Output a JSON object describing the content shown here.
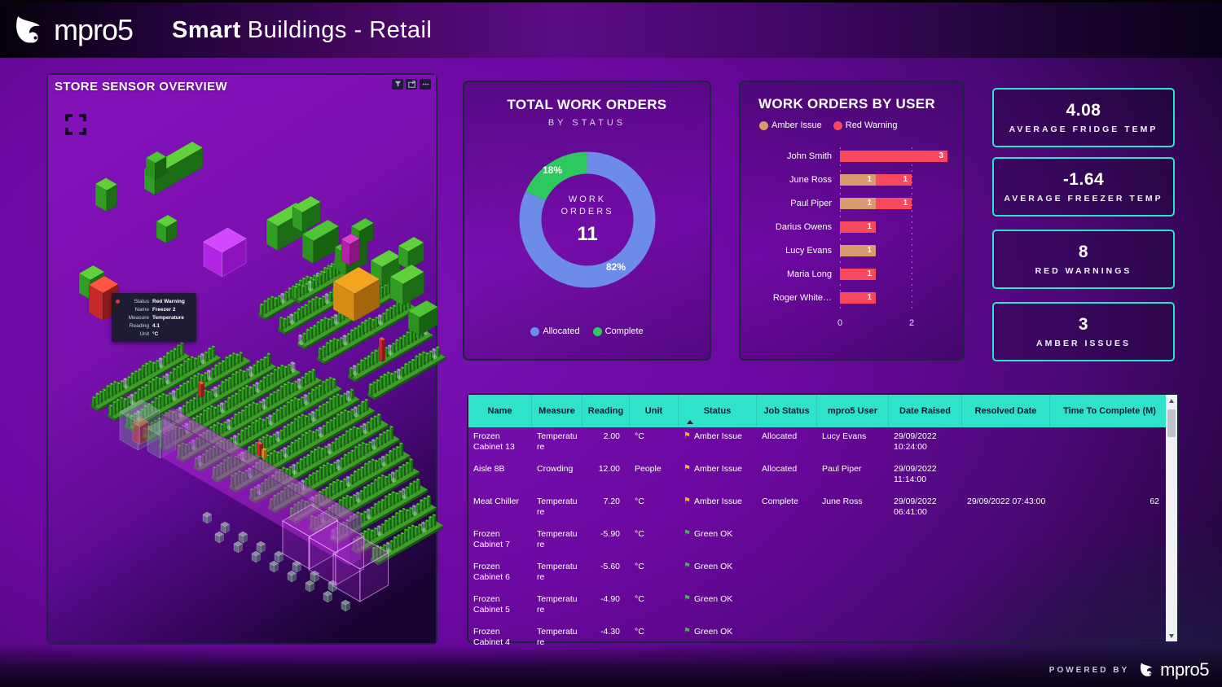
{
  "header": {
    "brand": "mpro5",
    "title_bold": "Smart",
    "title_rest": "Buildings - Retail"
  },
  "store_panel": {
    "title": "STORE SENSOR OVERVIEW",
    "toolbar_icons": [
      "filter-icon",
      "focus-mode-icon",
      "more-options-icon"
    ],
    "tooltip": {
      "rows": [
        {
          "label": "Status",
          "value": "Red Warning"
        },
        {
          "label": "Name",
          "value": "Freezer 2"
        },
        {
          "label": "Measure",
          "value": "Temperature"
        },
        {
          "label": "Reading",
          "value": "4.1"
        },
        {
          "label": "Unit",
          "value": "°C"
        }
      ]
    }
  },
  "chart_data": [
    {
      "type": "pie",
      "title": "TOTAL WORK ORDERS",
      "subtitle": "BY STATUS",
      "labels": [
        "Allocated",
        "Complete"
      ],
      "values": [
        9,
        2
      ],
      "percents": [
        82,
        18
      ],
      "value_labels": [
        "82%",
        "18%"
      ],
      "colors": [
        "#6D8CE8",
        "#2EC95E"
      ],
      "center_label": "WORK ORDERS",
      "center_value": "11",
      "legend_position": "bottom"
    },
    {
      "type": "bar",
      "orientation": "horizontal",
      "stacked": true,
      "title": "WORK ORDERS BY USER",
      "categories": [
        "John Smith",
        "June Ross",
        "Paul Piper",
        "Darius Owens",
        "Lucy Evans",
        "Maria Long",
        "Roger White…"
      ],
      "series": [
        {
          "name": "Amber Issue",
          "color": "#D99A70",
          "values": [
            0,
            1,
            1,
            0,
            1,
            0,
            0
          ]
        },
        {
          "name": "Red Warning",
          "color": "#F7485E",
          "values": [
            3,
            1,
            1,
            1,
            0,
            1,
            1
          ]
        }
      ],
      "x_ticks": [
        "0",
        "2"
      ],
      "xlim": [
        0,
        3.2
      ],
      "grid": "dotted-vertical"
    }
  ],
  "kpis": [
    {
      "value": "4.08",
      "label": "AVERAGE FRIDGE TEMP"
    },
    {
      "value": "-1.64",
      "label": "AVERAGE FREEZER TEMP"
    },
    {
      "value": "8",
      "label": "RED WARNINGS"
    },
    {
      "value": "3",
      "label": "AMBER ISSUES"
    }
  ],
  "table": {
    "columns": [
      "Name",
      "Measure",
      "Reading",
      "Unit",
      "Status",
      "Job Status",
      "mpro5 User",
      "Date Raised",
      "Resolved Date",
      "Time To Complete (M)"
    ],
    "sorted_column": "Status",
    "sort_direction": "ascending",
    "status_flag_glyph": "⚑",
    "rows": [
      {
        "name": "Frozen Cabinet 13",
        "measure": "Temperature",
        "reading": "2.00",
        "unit": "°C",
        "status": "Amber Issue",
        "status_color": "#E8B33C",
        "job_status": "Allocated",
        "user": "Lucy Evans",
        "date_raised": "29/09/2022 10:24:00",
        "resolved_date": "",
        "time_to_complete": ""
      },
      {
        "name": "Aisle 8B",
        "measure": "Crowding",
        "reading": "12.00",
        "unit": "People",
        "status": "Amber Issue",
        "status_color": "#E8B33C",
        "job_status": "Allocated",
        "user": "Paul Piper",
        "date_raised": "29/09/2022 11:14:00",
        "resolved_date": "",
        "time_to_complete": ""
      },
      {
        "name": "Meat Chiller",
        "measure": "Temperature",
        "reading": "7.20",
        "unit": "°C",
        "status": "Amber Issue",
        "status_color": "#E8B33C",
        "job_status": "Complete",
        "user": "June Ross",
        "date_raised": "29/09/2022 06:41:00",
        "resolved_date": "29/09/2022 07:43:00",
        "time_to_complete": "62"
      },
      {
        "name": "Frozen Cabinet 7",
        "measure": "Temperature",
        "reading": "-5.90",
        "unit": "°C",
        "status": "Green OK",
        "status_color": "#3DBB4A",
        "job_status": "",
        "user": "",
        "date_raised": "",
        "resolved_date": "",
        "time_to_complete": ""
      },
      {
        "name": "Frozen Cabinet 6",
        "measure": "Temperature",
        "reading": "-5.60",
        "unit": "°C",
        "status": "Green OK",
        "status_color": "#3DBB4A",
        "job_status": "",
        "user": "",
        "date_raised": "",
        "resolved_date": "",
        "time_to_complete": ""
      },
      {
        "name": "Frozen Cabinet 5",
        "measure": "Temperature",
        "reading": "-4.90",
        "unit": "°C",
        "status": "Green OK",
        "status_color": "#3DBB4A",
        "job_status": "",
        "user": "",
        "date_raised": "",
        "resolved_date": "",
        "time_to_complete": ""
      },
      {
        "name": "Frozen Cabinet 4",
        "measure": "Temperature",
        "reading": "-4.30",
        "unit": "°C",
        "status": "Green OK",
        "status_color": "#3DBB4A",
        "job_status": "",
        "user": "",
        "date_raised": "",
        "resolved_date": "",
        "time_to_complete": ""
      }
    ]
  },
  "footer": {
    "powered_by": "POWERED BY",
    "brand": "mpro5"
  },
  "colors": {
    "accent_teal": "#2EE3C9",
    "donut_blue": "#6D8CE8",
    "donut_green": "#2EC95E",
    "amber": "#D99A70",
    "red_warning": "#F7485E",
    "header_text": "#0E1A38"
  }
}
